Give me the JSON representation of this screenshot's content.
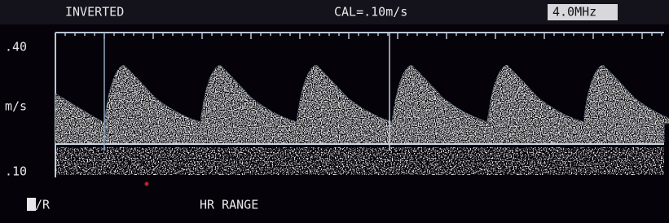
{
  "header": {
    "mode": "INVERTED",
    "calibration": "CAL=.10m/s",
    "frequency": "4.0MHz"
  },
  "scale": {
    "top_label": ".40",
    "unit": "m/s",
    "bottom_label": ".10"
  },
  "footer": {
    "left": "L/R",
    "center": "HR RANGE"
  }
}
